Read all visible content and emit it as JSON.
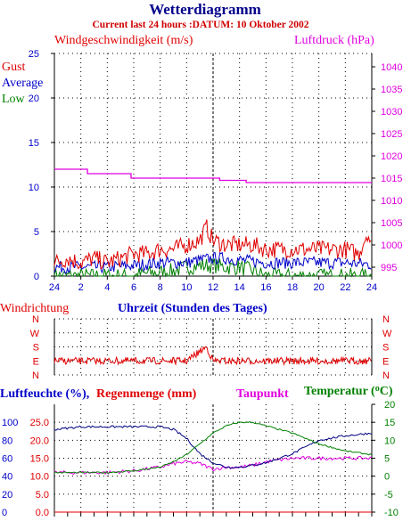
{
  "header": {
    "title": "Wetterdiagramm",
    "subtitle": "Current last 24 hours :DATUM: 10 Oktober 2002"
  },
  "panel_wind": {
    "left_label": "Windgeschwindigkeit (m/s)",
    "right_label": "Luftdruck (hPa)",
    "legend": [
      "Gust",
      "Average",
      "Low"
    ],
    "x_label": "Uhrzeit (Stunden des Tages)"
  },
  "panel_direction": {
    "label": "Windrichtung",
    "compass": [
      "N",
      "W",
      "S",
      "E",
      "N"
    ]
  },
  "panel_climate": {
    "humidity_label": "Luftfeuchte (%),",
    "rain_label": "Regenmenge (mm)",
    "dewpoint_label": "Taupunkt",
    "temperature_label": "Temperatur (",
    "temperature_unit": "C)"
  },
  "colors": {
    "gust": "#e00000",
    "average": "#0000c8",
    "low": "#008000",
    "pressure": "#e000e0",
    "humidity": "#000080",
    "temperature": "#008000",
    "dewpoint": "#e000e0",
    "rain": "#e00000",
    "direction": "#e00000"
  },
  "chart_data": [
    {
      "type": "line",
      "title": "Wetterdiagramm",
      "x_ticks": [
        "24",
        "2",
        "4",
        "6",
        "8",
        "10",
        "12",
        "14",
        "16",
        "18",
        "20",
        "22",
        "24"
      ],
      "xlim": [
        0,
        24
      ],
      "y_left": {
        "label": "Windgeschwindigkeit (m/s)",
        "ylim": [
          0,
          25
        ],
        "ticks": [
          "0",
          "5",
          "10",
          "15",
          "20",
          "25"
        ]
      },
      "y_right": {
        "label": "Luftdruck (hPa)",
        "ylim": [
          993,
          1043
        ],
        "ticks": [
          "995",
          "1000",
          "1005",
          "1010",
          "1015",
          "1020",
          "1025",
          "1030",
          "1035",
          "1040"
        ]
      },
      "grid": true,
      "series": [
        {
          "name": "Gust",
          "axis": "left",
          "x": [
            0,
            1,
            2,
            3,
            4,
            5,
            6,
            7,
            8,
            9,
            10,
            11,
            11.5,
            12,
            13,
            14,
            15,
            16,
            17,
            18,
            19,
            20,
            21,
            22,
            23,
            23.7,
            24
          ],
          "values": [
            1.5,
            2,
            1.5,
            2,
            1.5,
            2,
            2.5,
            2.5,
            3,
            3,
            3.5,
            4,
            5.5,
            4,
            3.5,
            3.5,
            3.5,
            3,
            3,
            3,
            3,
            3,
            3,
            3,
            2.5,
            5,
            3
          ]
        },
        {
          "name": "Average",
          "axis": "left",
          "x": [
            0,
            2,
            4,
            6,
            8,
            10,
            11,
            12,
            13,
            14,
            16,
            18,
            20,
            22,
            24
          ],
          "values": [
            1,
            1,
            1,
            1.2,
            1.5,
            1.5,
            1.8,
            2,
            2,
            1.8,
            1.5,
            1.5,
            1.5,
            1.5,
            1.3
          ]
        },
        {
          "name": "Low",
          "axis": "left",
          "x": [
            0,
            6,
            7,
            8,
            9,
            10,
            11,
            12,
            13,
            14,
            15,
            16,
            24
          ],
          "values": [
            0,
            0,
            0.3,
            0.4,
            0.6,
            1,
            1.2,
            1.2,
            1,
            1,
            0.6,
            0,
            0
          ]
        },
        {
          "name": "Luftdruck",
          "axis": "right",
          "x": [
            0,
            2.5,
            2.5,
            5.8,
            5.8,
            12.5,
            12.5,
            14.5,
            14.5,
            24
          ],
          "values": [
            1017,
            1017,
            1016,
            1016,
            1015,
            1015,
            1014.5,
            1014.5,
            1014,
            1014
          ]
        }
      ]
    },
    {
      "type": "line",
      "title": "Windrichtung",
      "xlim": [
        0,
        24
      ],
      "categories": [
        "N",
        "W",
        "S",
        "E",
        "N"
      ],
      "x": [
        0,
        2,
        4,
        6,
        8,
        10,
        11.5,
        12,
        13,
        14,
        16,
        18,
        20,
        22,
        24
      ],
      "values": [
        "E",
        "E",
        "E",
        "E",
        "E",
        "E",
        "S",
        "E",
        "E",
        "E",
        "E",
        "E",
        "E",
        "E",
        "E"
      ]
    },
    {
      "type": "line",
      "title": "Luftfeuchte / Regenmenge / Taupunkt / Temperatur",
      "xlim": [
        0,
        24
      ],
      "y_left_outer": {
        "label": "Luftfeuchte (%)",
        "ylim": [
          0,
          120
        ],
        "ticks": [
          "0",
          "20",
          "40",
          "60",
          "80",
          "100"
        ]
      },
      "y_left_inner": {
        "label": "Regenmenge (mm)",
        "ylim": [
          0,
          30
        ],
        "ticks": [
          "0.0",
          "5.0",
          "10.0",
          "15.0",
          "20.0",
          "25.0"
        ]
      },
      "y_right": {
        "label": "Temperatur (°C)",
        "ylim": [
          -10,
          20
        ],
        "ticks": [
          "-10",
          "-5",
          "0",
          "5",
          "10",
          "15",
          "20"
        ]
      },
      "grid": true,
      "series": [
        {
          "name": "Luftfeuchte",
          "axis": "left_outer",
          "x": [
            0,
            2,
            4,
            6,
            8,
            9,
            10,
            11,
            12,
            13,
            14,
            15,
            16,
            18,
            20,
            22,
            24
          ],
          "values": [
            92,
            95,
            95,
            95,
            95,
            92,
            82,
            65,
            55,
            50,
            50,
            52,
            55,
            65,
            80,
            85,
            88
          ]
        },
        {
          "name": "Temperatur",
          "axis": "right",
          "x": [
            0,
            2,
            4,
            6,
            8,
            9,
            10,
            11,
            12,
            13,
            14,
            15,
            16,
            18,
            20,
            22,
            24
          ],
          "values": [
            1,
            1,
            1,
            1.5,
            2.5,
            4,
            6,
            9,
            12,
            14,
            15,
            15,
            14,
            12,
            9,
            7,
            6
          ]
        },
        {
          "name": "Taupunkt",
          "axis": "right",
          "x": [
            0,
            2,
            4,
            6,
            8,
            9,
            10,
            11,
            12,
            13,
            14,
            15,
            16,
            18,
            20,
            22,
            24
          ],
          "values": [
            1,
            1,
            1,
            1.5,
            2.5,
            3.5,
            4,
            3.5,
            2,
            2.5,
            2.5,
            3,
            4,
            5,
            5,
            5,
            5
          ]
        },
        {
          "name": "Regenmenge",
          "axis": "left_inner",
          "x": [
            0,
            24
          ],
          "values": [
            0,
            0
          ]
        }
      ]
    }
  ]
}
